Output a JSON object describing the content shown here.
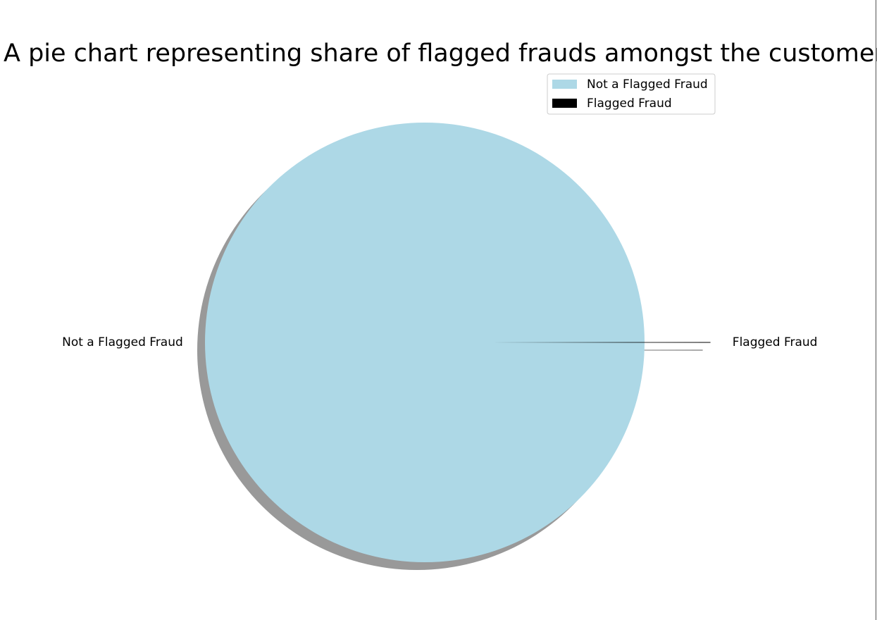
{
  "chart_data": {
    "type": "pie",
    "title": "A pie chart representing share of flagged frauds amongst the customers",
    "labels": [
      "Not a Flagged Fraud",
      "Flagged Fraud"
    ],
    "values": [
      99.9997,
      0.0003
    ],
    "colors": [
      "#add8e6",
      "#000000"
    ],
    "explode": [
      0,
      0.3
    ],
    "shadow": true,
    "start_angle_deg": 0,
    "legend": {
      "placement": "top-right",
      "entries": [
        "Not a Flagged Fraud",
        "Flagged Fraud"
      ]
    }
  }
}
